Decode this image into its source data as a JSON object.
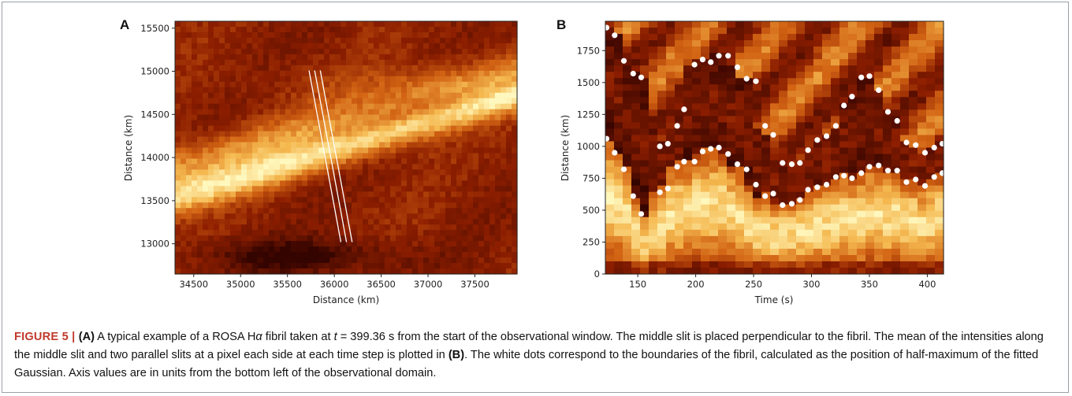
{
  "panel_a": {
    "letter": "A",
    "xlabel": "Distance (km)",
    "ylabel": "Distance (km)",
    "xticks": [
      34500,
      35000,
      35500,
      36000,
      36500,
      37000,
      37500
    ],
    "yticks": [
      13000,
      13500,
      14000,
      14500,
      15000,
      15500
    ],
    "xlim": [
      34300,
      37950
    ],
    "ylim": [
      12650,
      15580
    ],
    "slits": [
      {
        "x1": 35730,
        "y1": 15010,
        "x2": 36070,
        "y2": 13020
      },
      {
        "x1": 35790,
        "y1": 15010,
        "x2": 36130,
        "y2": 13020
      },
      {
        "x1": 35850,
        "y1": 15010,
        "x2": 36190,
        "y2": 13020
      }
    ]
  },
  "panel_b": {
    "letter": "B",
    "xlabel": "Time (s)",
    "ylabel": "Distance (km)",
    "xticks": [
      150,
      200,
      250,
      300,
      350,
      400
    ],
    "yticks": [
      0,
      250,
      500,
      750,
      1000,
      1250,
      1500,
      1750
    ],
    "xlim": [
      122,
      414
    ],
    "ylim": [
      0,
      1980
    ],
    "upper_dots": [
      [
        123,
        1930
      ],
      [
        130,
        1870
      ],
      [
        138,
        1670
      ],
      [
        146,
        1570
      ],
      [
        153,
        1540
      ],
      [
        169,
        1000
      ],
      [
        176,
        1020
      ],
      [
        184,
        1160
      ],
      [
        190,
        1290
      ],
      [
        199,
        1640
      ],
      [
        206,
        1680
      ],
      [
        213,
        1660
      ],
      [
        220,
        1710
      ],
      [
        228,
        1710
      ],
      [
        236,
        1620
      ],
      [
        244,
        1530
      ],
      [
        252,
        1510
      ],
      [
        260,
        1160
      ],
      [
        267,
        1090
      ],
      [
        275,
        870
      ],
      [
        283,
        860
      ],
      [
        290,
        870
      ],
      [
        297,
        970
      ],
      [
        305,
        1050
      ],
      [
        313,
        1080
      ],
      [
        321,
        1160
      ],
      [
        328,
        1320
      ],
      [
        335,
        1390
      ],
      [
        343,
        1540
      ],
      [
        350,
        1550
      ],
      [
        358,
        1440
      ],
      [
        366,
        1270
      ],
      [
        374,
        1200
      ],
      [
        382,
        1030
      ],
      [
        390,
        1010
      ],
      [
        398,
        950
      ],
      [
        406,
        990
      ],
      [
        413,
        1020
      ]
    ],
    "lower_dots": [
      [
        123,
        1060
      ],
      [
        130,
        950
      ],
      [
        138,
        820
      ],
      [
        146,
        610
      ],
      [
        153,
        470
      ],
      [
        169,
        640
      ],
      [
        176,
        670
      ],
      [
        184,
        840
      ],
      [
        190,
        880
      ],
      [
        199,
        880
      ],
      [
        206,
        960
      ],
      [
        213,
        980
      ],
      [
        220,
        990
      ],
      [
        228,
        940
      ],
      [
        236,
        860
      ],
      [
        244,
        820
      ],
      [
        252,
        700
      ],
      [
        260,
        610
      ],
      [
        267,
        630
      ],
      [
        275,
        540
      ],
      [
        283,
        550
      ],
      [
        290,
        580
      ],
      [
        297,
        660
      ],
      [
        305,
        680
      ],
      [
        313,
        700
      ],
      [
        321,
        760
      ],
      [
        328,
        770
      ],
      [
        335,
        750
      ],
      [
        343,
        790
      ],
      [
        350,
        840
      ],
      [
        358,
        850
      ],
      [
        366,
        810
      ],
      [
        374,
        810
      ],
      [
        382,
        720
      ],
      [
        390,
        740
      ],
      [
        398,
        690
      ],
      [
        406,
        760
      ],
      [
        413,
        790
      ]
    ]
  },
  "caption": {
    "label": "FIGURE 5 | ",
    "s1_a": "(A)",
    "s1_b": " A typical example of a ROSA H",
    "s1_alpha": "α",
    "s1_c": " fibril taken at ",
    "s1_t": "t",
    "s1_d": " = 399.36 s from the start of the observational window. The middle slit is placed perpendicular to the fibril. The mean of the intensities along the middle slit and two parallel slits at a pixel each side at each time step is plotted in ",
    "s1_b2": "(B)",
    "s1_e": ". The white dots correspond to the boundaries of the fibril, calculated as the position of half-maximum of the fitted Gaussian. Axis values are in units from the bottom left of the observational domain."
  },
  "colors": {
    "cmap_dark": "#3a0500",
    "cmap_light": "#fff6b8",
    "dot": "#ffffff",
    "slit": "#ffffff"
  }
}
